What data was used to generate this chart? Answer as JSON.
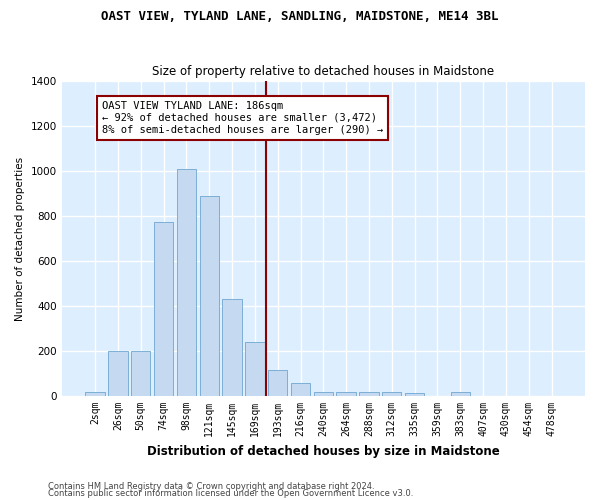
{
  "title": "OAST VIEW, TYLAND LANE, SANDLING, MAIDSTONE, ME14 3BL",
  "subtitle": "Size of property relative to detached houses in Maidstone",
  "xlabel": "Distribution of detached houses by size in Maidstone",
  "ylabel": "Number of detached properties",
  "categories": [
    "2sqm",
    "26sqm",
    "50sqm",
    "74sqm",
    "98sqm",
    "121sqm",
    "145sqm",
    "169sqm",
    "193sqm",
    "216sqm",
    "240sqm",
    "264sqm",
    "288sqm",
    "312sqm",
    "335sqm",
    "359sqm",
    "383sqm",
    "407sqm",
    "430sqm",
    "454sqm",
    "478sqm"
  ],
  "values": [
    20,
    200,
    200,
    775,
    1010,
    890,
    430,
    240,
    115,
    60,
    20,
    20,
    20,
    20,
    15,
    0,
    20,
    0,
    0,
    0,
    0
  ],
  "bar_color": "#c5d9f1",
  "bar_edge_color": "#6ea6d0",
  "vline_x_index": 7.5,
  "annotation_box_text": "OAST VIEW TYLAND LANE: 186sqm\n← 92% of detached houses are smaller (3,472)\n8% of semi-detached houses are larger (290) →",
  "vline_color": "#8b0000",
  "annotation_box_facecolor": "white",
  "annotation_box_edgecolor": "#8b0000",
  "bg_color": "#ddeeff",
  "grid_color": "white",
  "ylim": [
    0,
    1400
  ],
  "yticks": [
    0,
    200,
    400,
    600,
    800,
    1000,
    1200,
    1400
  ],
  "footer_line1": "Contains HM Land Registry data © Crown copyright and database right 2024.",
  "footer_line2": "Contains public sector information licensed under the Open Government Licence v3.0."
}
